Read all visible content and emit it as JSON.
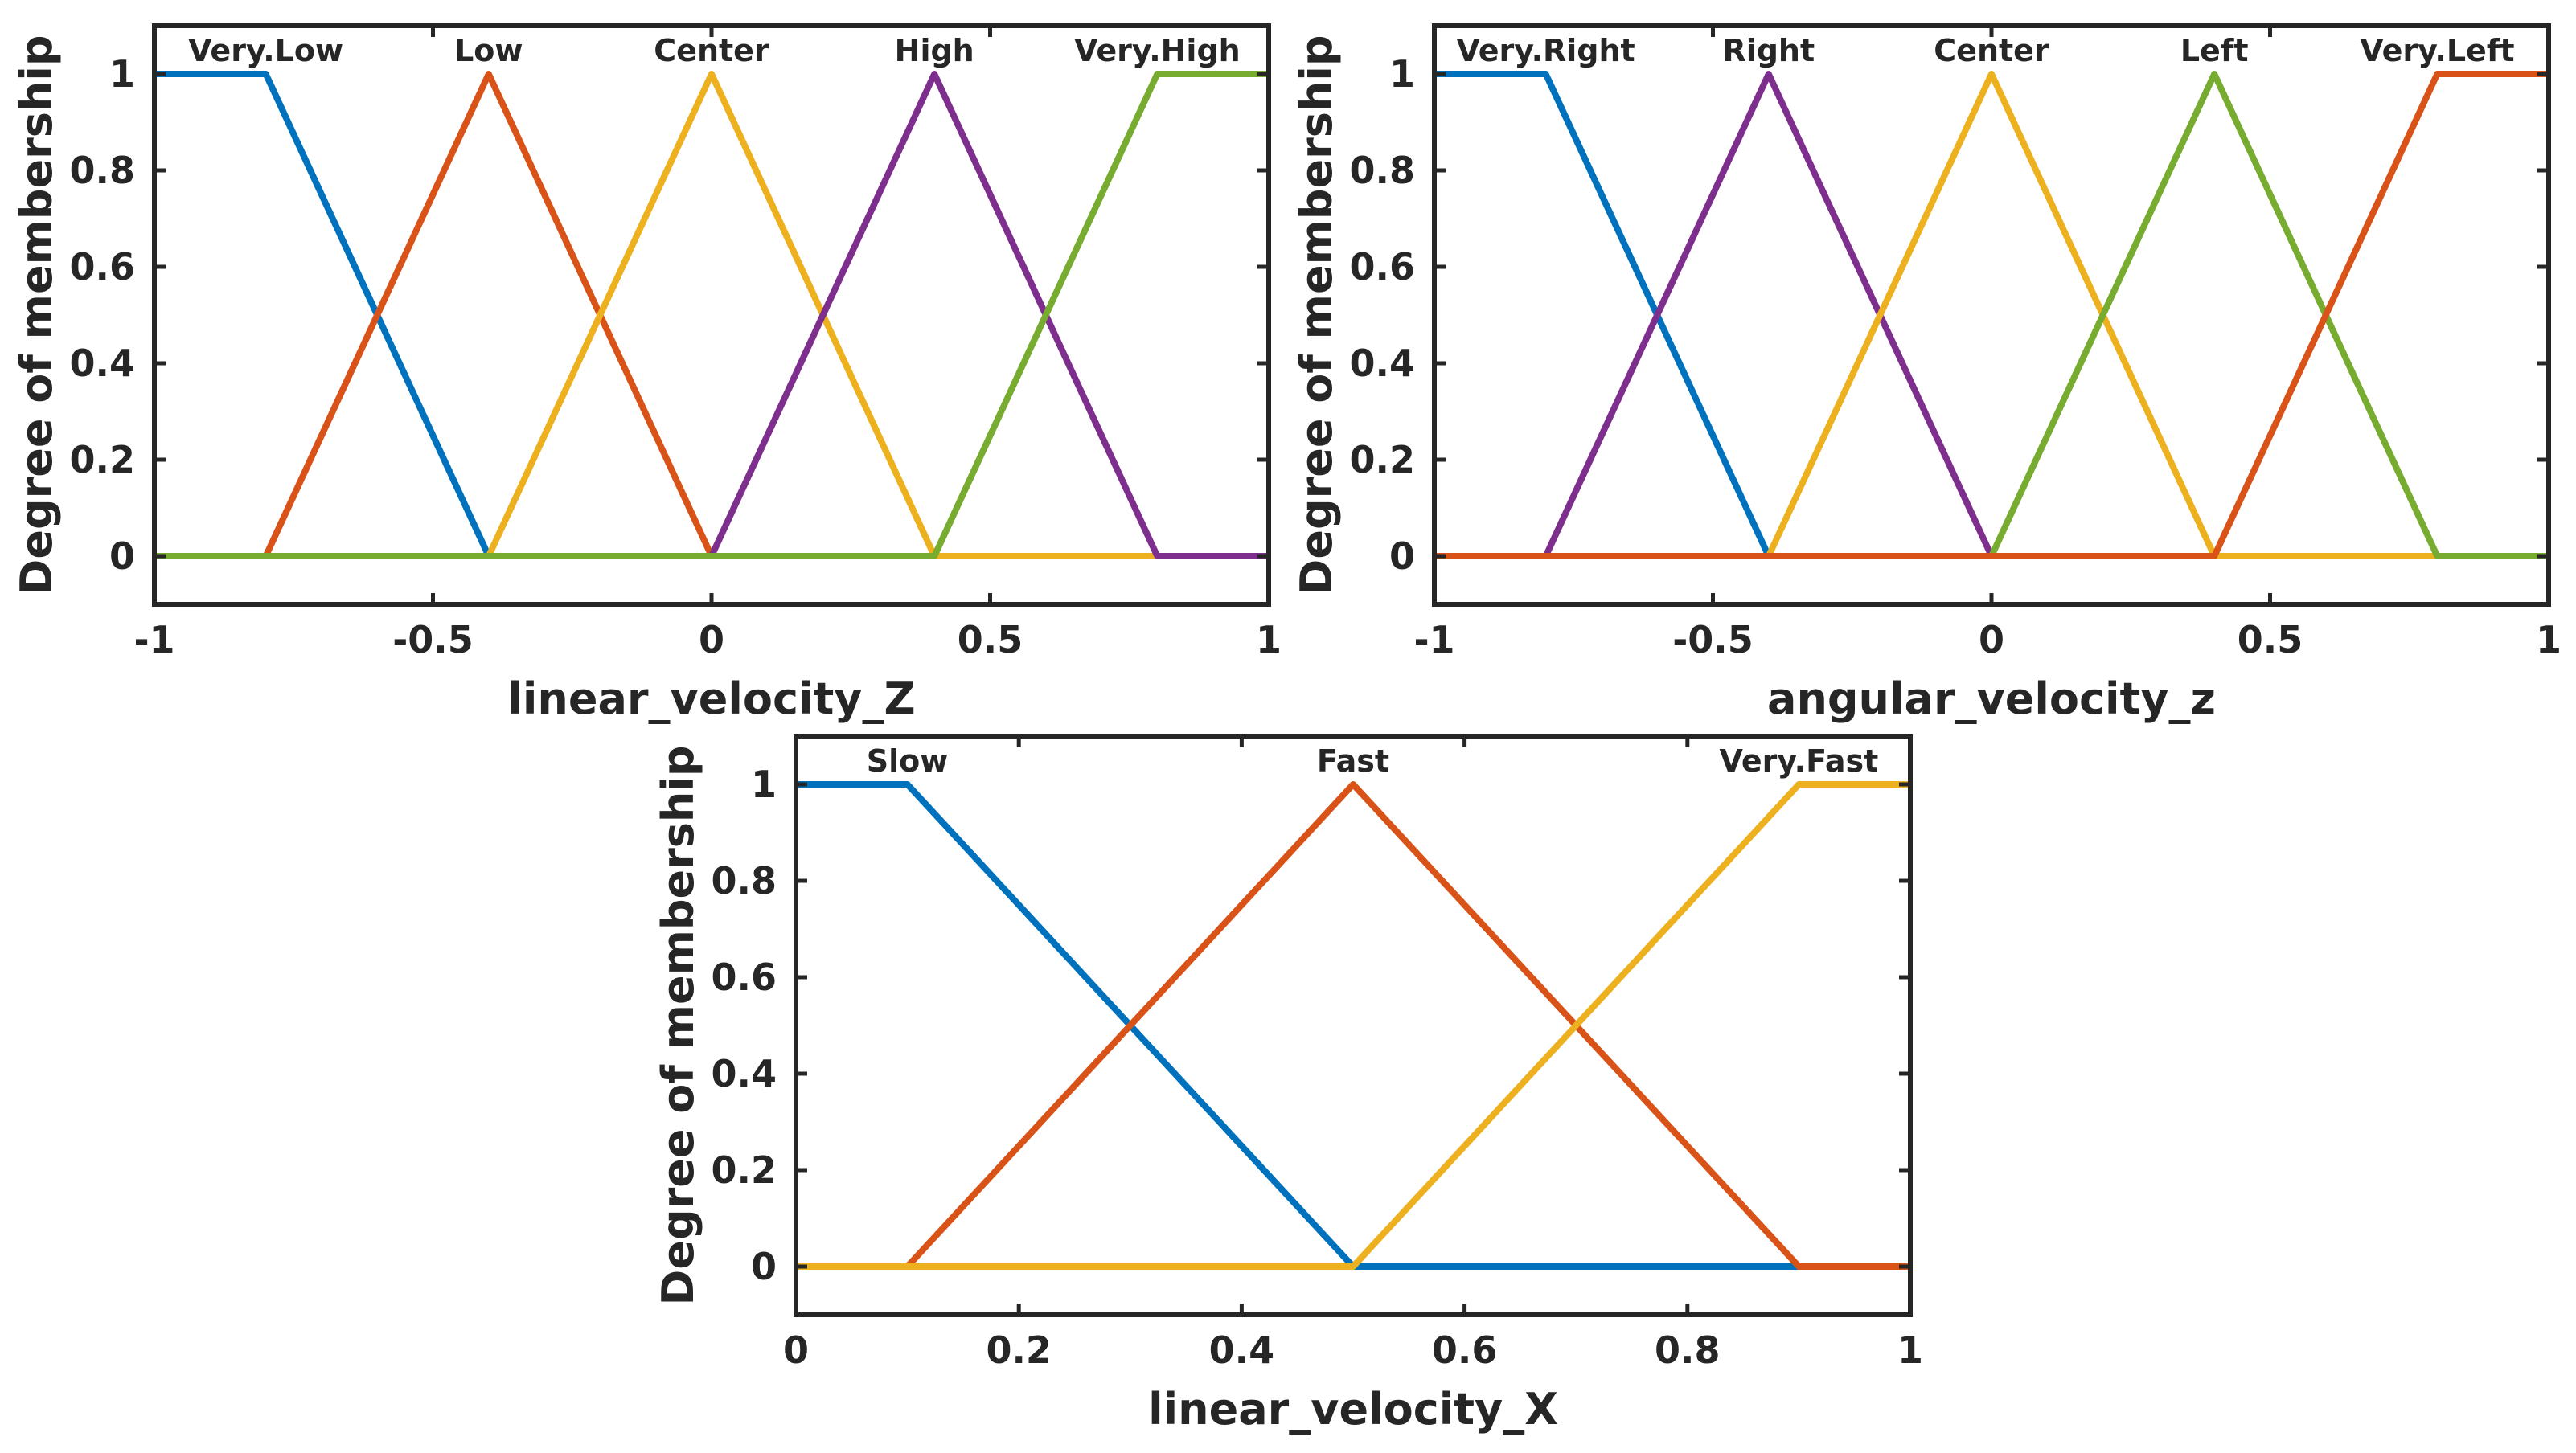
{
  "chart_data": [
    {
      "type": "line",
      "title": "",
      "xlabel": "linear_velocity_Z",
      "ylabel": "Degree of membership",
      "xlim": [
        -1,
        1
      ],
      "ylim": [
        -0.1,
        1.1
      ],
      "xticks": [
        -1,
        -0.5,
        0,
        0.5,
        1
      ],
      "xtick_labels": [
        "-1",
        "-0.5",
        "0",
        "0.5",
        "1"
      ],
      "yticks": [
        0,
        0.2,
        0.4,
        0.6,
        0.8,
        1
      ],
      "ytick_labels": [
        "0",
        "0.2",
        "0.4",
        "0.6",
        "0.8",
        "1"
      ],
      "grid": false,
      "series": [
        {
          "name": "Very.Low",
          "color": "#0072BD",
          "label_x": -0.8,
          "x": [
            -1,
            -0.8,
            -0.4,
            1
          ],
          "y": [
            1,
            1,
            0,
            0
          ]
        },
        {
          "name": "Low",
          "color": "#D95319",
          "label_x": -0.4,
          "x": [
            -1,
            -0.8,
            -0.4,
            0,
            1
          ],
          "y": [
            0,
            0,
            1,
            0,
            0
          ]
        },
        {
          "name": "Center",
          "color": "#EDB120",
          "label_x": 0,
          "x": [
            -1,
            -0.4,
            0,
            0.4,
            1
          ],
          "y": [
            0,
            0,
            1,
            0,
            0
          ]
        },
        {
          "name": "High",
          "color": "#7E2F8E",
          "label_x": 0.4,
          "x": [
            -1,
            0,
            0.4,
            0.8,
            1
          ],
          "y": [
            0,
            0,
            1,
            0,
            0
          ]
        },
        {
          "name": "Very.High",
          "color": "#77AC30",
          "label_x": 0.8,
          "x": [
            -1,
            0.4,
            0.8,
            1
          ],
          "y": [
            0,
            0,
            1,
            1
          ]
        }
      ]
    },
    {
      "type": "line",
      "title": "",
      "xlabel": "angular_velocity_z",
      "ylabel": "Degree of membership",
      "xlim": [
        -1,
        1
      ],
      "ylim": [
        -0.1,
        1.1
      ],
      "xticks": [
        -1,
        -0.5,
        0,
        0.5,
        1
      ],
      "xtick_labels": [
        "-1",
        "-0.5",
        "0",
        "0.5",
        "1"
      ],
      "yticks": [
        0,
        0.2,
        0.4,
        0.6,
        0.8,
        1
      ],
      "ytick_labels": [
        "0",
        "0.2",
        "0.4",
        "0.6",
        "0.8",
        "1"
      ],
      "grid": false,
      "series": [
        {
          "name": "Very.Right",
          "color": "#0072BD",
          "label_x": -0.8,
          "x": [
            -1,
            -0.8,
            -0.4,
            1
          ],
          "y": [
            1,
            1,
            0,
            0
          ]
        },
        {
          "name": "Right",
          "color": "#7E2F8E",
          "label_x": -0.4,
          "x": [
            -1,
            -0.8,
            -0.4,
            0,
            1
          ],
          "y": [
            0,
            0,
            1,
            0,
            0
          ]
        },
        {
          "name": "Center",
          "color": "#EDB120",
          "label_x": 0,
          "x": [
            -1,
            -0.4,
            0,
            0.4,
            1
          ],
          "y": [
            0,
            0,
            1,
            0,
            0
          ]
        },
        {
          "name": "Left",
          "color": "#77AC30",
          "label_x": 0.4,
          "x": [
            -1,
            0,
            0.4,
            0.8,
            1
          ],
          "y": [
            0,
            0,
            1,
            0,
            0
          ]
        },
        {
          "name": "Very.Left",
          "color": "#D95319",
          "label_x": 0.8,
          "x": [
            -1,
            0.4,
            0.8,
            1
          ],
          "y": [
            0,
            0,
            1,
            1
          ]
        }
      ]
    },
    {
      "type": "line",
      "title": "",
      "xlabel": "linear_velocity_X",
      "ylabel": "Degree of membership",
      "xlim": [
        0,
        1
      ],
      "ylim": [
        -0.1,
        1.1
      ],
      "xticks": [
        0,
        0.2,
        0.4,
        0.6,
        0.8,
        1
      ],
      "xtick_labels": [
        "0",
        "0.2",
        "0.4",
        "0.6",
        "0.8",
        "1"
      ],
      "yticks": [
        0,
        0.2,
        0.4,
        0.6,
        0.8,
        1
      ],
      "ytick_labels": [
        "0",
        "0.2",
        "0.4",
        "0.6",
        "0.8",
        "1"
      ],
      "grid": false,
      "series": [
        {
          "name": "Slow",
          "color": "#0072BD",
          "label_x": 0.1,
          "x": [
            0,
            0.1,
            0.5,
            1
          ],
          "y": [
            1,
            1,
            0,
            0
          ]
        },
        {
          "name": "Fast",
          "color": "#D95319",
          "label_x": 0.5,
          "x": [
            0,
            0.1,
            0.5,
            0.9,
            1
          ],
          "y": [
            0,
            0,
            1,
            0,
            0
          ]
        },
        {
          "name": "Very.Fast",
          "color": "#EDB120",
          "label_x": 0.9,
          "x": [
            0,
            0.5,
            0.9,
            1
          ],
          "y": [
            0,
            0,
            1,
            1
          ]
        }
      ]
    }
  ]
}
